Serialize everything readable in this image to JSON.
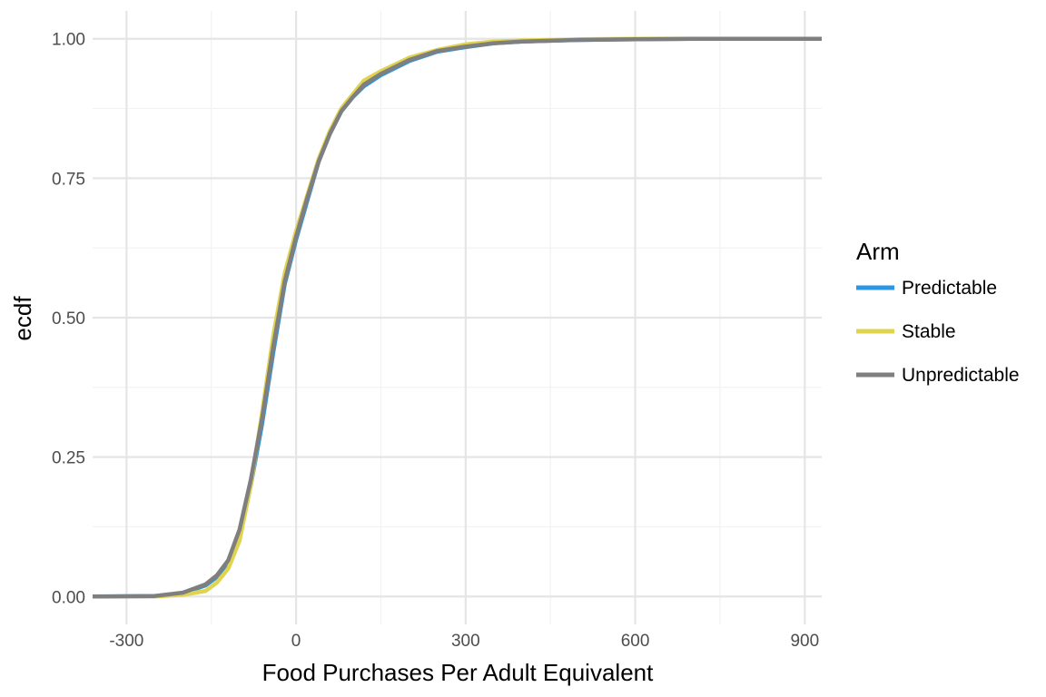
{
  "chart_data": {
    "type": "line",
    "title": "",
    "xlabel": "Food Purchases Per Adult Equivalent",
    "ylabel": "ecdf",
    "xlim": [
      -360,
      930
    ],
    "ylim": [
      -0.05,
      1.05
    ],
    "x_ticks": [
      -300,
      0,
      300,
      600,
      900
    ],
    "x_tick_labels": [
      "-300",
      "0",
      "300",
      "600",
      "900"
    ],
    "y_ticks": [
      0,
      0.25,
      0.5,
      0.75,
      1
    ],
    "y_tick_labels": [
      "0.00",
      "0.25",
      "0.50",
      "0.75",
      "1.00"
    ],
    "grid": true,
    "legend": {
      "title": "Arm",
      "position": "right"
    },
    "series": [
      {
        "name": "Predictable",
        "color": "#2b96e3",
        "x": [
          -360,
          -250,
          -200,
          -160,
          -140,
          -120,
          -100,
          -80,
          -60,
          -40,
          -20,
          0,
          20,
          40,
          60,
          80,
          100,
          120,
          150,
          200,
          250,
          300,
          350,
          400,
          500,
          600,
          700,
          930
        ],
        "y": [
          0,
          0.001,
          0.006,
          0.02,
          0.035,
          0.06,
          0.11,
          0.2,
          0.31,
          0.44,
          0.56,
          0.64,
          0.71,
          0.78,
          0.83,
          0.87,
          0.895,
          0.915,
          0.935,
          0.96,
          0.977,
          0.985,
          0.992,
          0.995,
          0.998,
          0.999,
          1.0,
          1.0
        ]
      },
      {
        "name": "Stable",
        "color": "#e0d44f",
        "x": [
          -360,
          -250,
          -200,
          -160,
          -140,
          -120,
          -100,
          -80,
          -60,
          -40,
          -20,
          0,
          20,
          40,
          60,
          80,
          100,
          120,
          150,
          200,
          250,
          300,
          350,
          400,
          500,
          600,
          700,
          930
        ],
        "y": [
          0,
          0.0,
          0.003,
          0.01,
          0.025,
          0.05,
          0.1,
          0.2,
          0.33,
          0.47,
          0.58,
          0.655,
          0.72,
          0.785,
          0.835,
          0.875,
          0.9,
          0.925,
          0.942,
          0.966,
          0.98,
          0.99,
          0.995,
          0.997,
          0.999,
          1.0,
          1.0,
          1.0
        ]
      },
      {
        "name": "Unpredictable",
        "color": "#7f7f7f",
        "x": [
          -360,
          -250,
          -200,
          -160,
          -140,
          -120,
          -100,
          -80,
          -60,
          -40,
          -20,
          0,
          20,
          40,
          60,
          80,
          100,
          120,
          150,
          200,
          250,
          300,
          350,
          400,
          500,
          600,
          700,
          930
        ],
        "y": [
          0,
          0.001,
          0.007,
          0.022,
          0.038,
          0.065,
          0.12,
          0.21,
          0.32,
          0.45,
          0.565,
          0.645,
          0.715,
          0.78,
          0.83,
          0.87,
          0.895,
          0.918,
          0.937,
          0.962,
          0.978,
          0.986,
          0.992,
          0.995,
          0.998,
          0.999,
          1.0,
          1.0
        ]
      }
    ]
  }
}
